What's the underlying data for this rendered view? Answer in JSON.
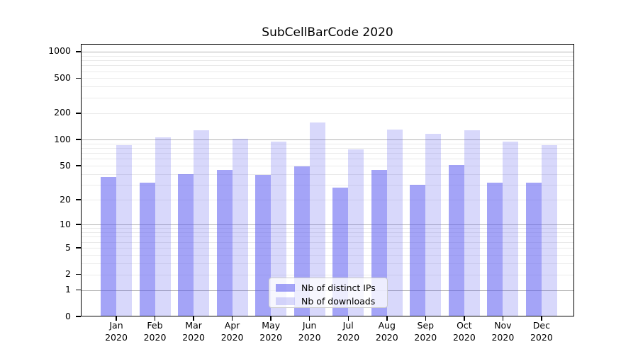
{
  "chart_data": {
    "type": "bar",
    "title": "SubCellBarCode 2020",
    "scale": "log1p",
    "categories": [
      "Jan",
      "Feb",
      "Mar",
      "Apr",
      "May",
      "Jun",
      "Jul",
      "Aug",
      "Sep",
      "Oct",
      "Nov",
      "Dec"
    ],
    "x_second_line": "2020",
    "yticks": [
      0,
      1,
      2,
      5,
      10,
      20,
      50,
      100,
      200,
      500,
      1000
    ],
    "ylim": [
      0,
      1200
    ],
    "grid": {
      "major_ticks": [
        1,
        10,
        100,
        1000
      ],
      "minor_decades": [
        1,
        10,
        100
      ],
      "major_color": "#b2b2b2",
      "minor_color": "#eaeaea"
    },
    "legend_position": "lower center",
    "series": [
      {
        "name": "Nb of distinct IPs",
        "color": "#5a5af0",
        "alpha": 0.55,
        "values": [
          37,
          32,
          40,
          45,
          39,
          49,
          28,
          45,
          30,
          51,
          32,
          32
        ]
      },
      {
        "name": "Nb of downloads",
        "color": "#5a5af0",
        "alpha": 0.24,
        "values": [
          86,
          105,
          128,
          102,
          94,
          158,
          77,
          131,
          116,
          128,
          94,
          86
        ]
      }
    ]
  }
}
